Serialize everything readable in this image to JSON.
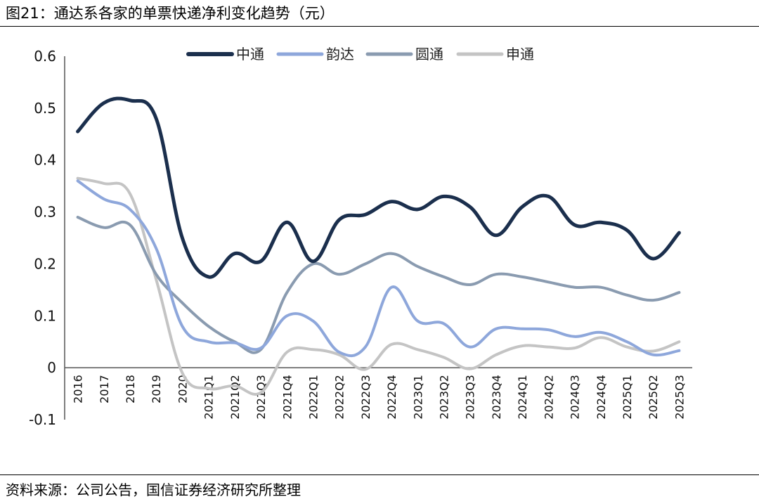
{
  "title": "图21：通达系各家的单票快递净利变化趋势（元）",
  "source": "资料来源：公司公告，国信证券经济研究所整理",
  "chart_data": {
    "type": "line",
    "unit": "元",
    "categories": [
      "2016",
      "2017",
      "2018",
      "2019",
      "2020",
      "2021Q1",
      "2021Q2",
      "2021Q3",
      "2021Q4",
      "2022Q1",
      "2022Q2",
      "2022Q3",
      "2022Q4",
      "2023Q1",
      "2023Q2",
      "2023Q3",
      "2023Q4",
      "2024Q1",
      "2024Q2",
      "2024Q3",
      "2024Q4",
      "2025Q1",
      "2025Q2",
      "2025Q3"
    ],
    "ylim": [
      -0.1,
      0.6
    ],
    "yticks": [
      "0.6",
      "0.5",
      "0.4",
      "0.3",
      "0.2",
      "0.1",
      "0",
      "-0.1"
    ],
    "ytick_values": [
      0.6,
      0.5,
      0.4,
      0.3,
      0.2,
      0.1,
      0,
      -0.1
    ],
    "legend_position": "top",
    "series": [
      {
        "name": "中通",
        "color": "#1b2f4d",
        "width": 5,
        "values": [
          0.455,
          0.51,
          0.515,
          0.48,
          0.25,
          0.175,
          0.22,
          0.205,
          0.28,
          0.205,
          0.285,
          0.295,
          0.32,
          0.305,
          0.33,
          0.31,
          0.255,
          0.31,
          0.33,
          0.275,
          0.28,
          0.265,
          0.21,
          0.26
        ]
      },
      {
        "name": "韵达",
        "color": "#8ea7db",
        "width": 4,
        "values": [
          0.36,
          0.325,
          0.305,
          0.23,
          0.08,
          0.05,
          0.048,
          0.038,
          0.1,
          0.09,
          0.03,
          0.04,
          0.155,
          0.09,
          0.085,
          0.04,
          0.075,
          0.075,
          0.073,
          0.06,
          0.068,
          0.05,
          0.025,
          0.033
        ]
      },
      {
        "name": "圆通",
        "color": "#8a9bb0",
        "width": 4,
        "values": [
          0.29,
          0.27,
          0.275,
          0.18,
          0.125,
          0.08,
          0.05,
          0.035,
          0.145,
          0.2,
          0.18,
          0.2,
          0.22,
          0.195,
          0.175,
          0.16,
          0.18,
          0.175,
          0.165,
          0.155,
          0.155,
          0.14,
          0.13,
          0.145
        ]
      },
      {
        "name": "申通",
        "color": "#c4c4c4",
        "width": 4,
        "values": [
          0.365,
          0.355,
          0.335,
          0.17,
          -0.01,
          -0.04,
          -0.035,
          -0.048,
          0.03,
          0.035,
          0.025,
          -0.003,
          0.045,
          0.035,
          0.02,
          -0.002,
          0.025,
          0.042,
          0.04,
          0.038,
          0.058,
          0.04,
          0.032,
          0.05
        ]
      }
    ]
  }
}
